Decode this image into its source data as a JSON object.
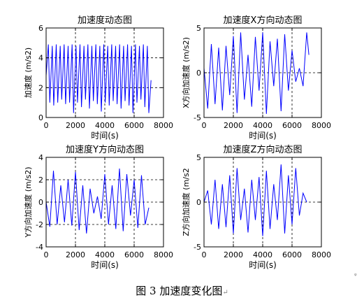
{
  "figure": {
    "caption": "图 3  加速度变化图",
    "caption_mark": "↵",
    "side_mark": "ᵩ"
  },
  "chart_data": [
    {
      "type": "line",
      "title": "加速度动态图",
      "xlabel": "时间(s)",
      "ylabel": "加速度 (m/s2)",
      "xlim": [
        0,
        8000
      ],
      "ylim": [
        0,
        6
      ],
      "xticks": [
        0,
        2000,
        4000,
        6000,
        8000
      ],
      "yticks": [
        0,
        2,
        4,
        6
      ],
      "grid": "dashed",
      "color": "#0000ff",
      "series": [
        {
          "x": [
            0,
            150,
            250,
            420,
            520,
            690,
            790,
            960,
            1060,
            1230,
            1330,
            1500,
            1600,
            1770,
            1870,
            2040,
            2140,
            2310,
            2410,
            2580,
            2680,
            2850,
            2950,
            3120,
            3220,
            3390,
            3490,
            3660,
            3760,
            3930,
            4030,
            4200,
            4300,
            4470,
            4570,
            4740,
            4840,
            5010,
            5110,
            5280,
            5380,
            5550,
            5650,
            5820,
            5920,
            6090,
            6190,
            6360,
            6460,
            6630,
            6730,
            6900,
            7000,
            7150
          ],
          "y": [
            2.8,
            4.9,
            1.0,
            4.8,
            0.8,
            4.9,
            1.0,
            4.8,
            1.2,
            4.9,
            0.9,
            4.8,
            1.0,
            4.9,
            0.3,
            4.8,
            1.0,
            4.9,
            0.7,
            4.8,
            1.2,
            4.9,
            0.6,
            4.8,
            1.1,
            4.9,
            0.9,
            4.8,
            0.4,
            4.9,
            1.0,
            4.8,
            0.8,
            4.9,
            1.1,
            4.8,
            0.9,
            4.9,
            0.6,
            4.8,
            1.1,
            4.9,
            0.8,
            4.8,
            0.3,
            4.9,
            1.0,
            4.8,
            1.2,
            4.9,
            0.7,
            4.8,
            0.3,
            2.5
          ]
        }
      ]
    },
    {
      "type": "line",
      "title": "加速度X方向动态图",
      "xlabel": "时间(s)",
      "ylabel": "X方向加速度 (m/s2)",
      "xlim": [
        0,
        8000
      ],
      "ylim": [
        -5,
        5
      ],
      "xticks": [
        0,
        2000,
        4000,
        6000,
        8000
      ],
      "yticks": [
        -5,
        0,
        5
      ],
      "grid": "dashed",
      "color": "#0000ff",
      "series": [
        {
          "x": [
            0,
            250,
            500,
            750,
            1000,
            1250,
            1500,
            1750,
            2000,
            2250,
            2500,
            2750,
            3000,
            3250,
            3500,
            3750,
            4000,
            4250,
            4500,
            4750,
            5000,
            5250,
            5500,
            5750,
            6000,
            6250,
            6500,
            6750,
            7000,
            7150
          ],
          "y": [
            0.5,
            -4.0,
            3.2,
            -3.5,
            2.8,
            -4.2,
            3.0,
            -2.5,
            4.1,
            -4.5,
            4.5,
            -3.0,
            2.0,
            -3.8,
            4.0,
            -2.0,
            4.5,
            -4.6,
            3.5,
            -1.5,
            3.8,
            -4.3,
            4.3,
            -2.0,
            2.5,
            -1.0,
            0.5,
            -1.5,
            4.5,
            2.0
          ]
        }
      ]
    },
    {
      "type": "line",
      "title": "加速度Y方向动态图",
      "xlabel": "时间(s)",
      "ylabel": "Y方向加速度 (m/s2)",
      "xlim": [
        0,
        8000
      ],
      "ylim": [
        -4,
        4
      ],
      "xticks": [
        0,
        2000,
        4000,
        6000,
        8000
      ],
      "yticks": [
        -4,
        -2,
        0,
        2,
        4
      ],
      "grid": "dashed",
      "color": "#0000ff",
      "series": [
        {
          "x": [
            0,
            250,
            500,
            750,
            1000,
            1250,
            1500,
            1750,
            2000,
            2250,
            2500,
            2750,
            3000,
            3250,
            3500,
            3750,
            4000,
            4250,
            4500,
            4750,
            5000,
            5250,
            5500,
            5750,
            6000,
            6250,
            6500,
            6750,
            7000
          ],
          "y": [
            0.0,
            -2.2,
            2.8,
            -2.0,
            1.5,
            -1.8,
            2.0,
            -2.1,
            2.7,
            -2.5,
            1.5,
            -2.8,
            1.2,
            -1.0,
            0.5,
            -1.5,
            2.5,
            -2.0,
            1.5,
            -2.4,
            3.0,
            -2.6,
            2.5,
            -1.2,
            2.0,
            -2.3,
            2.4,
            -2.0,
            -0.5
          ]
        }
      ]
    },
    {
      "type": "line",
      "title": "加速度Z方向动态图",
      "xlabel": "时间(s)",
      "ylabel": "Z方向加速度 (m/s2",
      "xlim": [
        0,
        8000
      ],
      "ylim": [
        -5,
        5
      ],
      "xticks": [
        0,
        2000,
        4000,
        6000,
        8000
      ],
      "yticks": [
        -5,
        0,
        5
      ],
      "grid": "dashed",
      "color": "#0000ff",
      "series": [
        {
          "x": [
            0,
            250,
            500,
            750,
            1000,
            1250,
            1500,
            1750,
            2000,
            2250,
            2500,
            2750,
            3000,
            3250,
            3500,
            3750,
            4000,
            4250,
            4500,
            4750,
            5000,
            5250,
            5500,
            5750,
            6000,
            6250,
            6500,
            6750,
            7000
          ],
          "y": [
            0.0,
            1.3,
            -2.5,
            2.5,
            -3.0,
            2.0,
            -2.8,
            3.0,
            -3.5,
            3.8,
            -2.0,
            1.5,
            -3.4,
            2.5,
            -2.0,
            2.8,
            -3.8,
            3.5,
            -3.0,
            2.0,
            -2.0,
            4.2,
            -3.5,
            3.0,
            -2.5,
            3.8,
            -1.5,
            1.0,
            0.0
          ]
        }
      ]
    }
  ]
}
